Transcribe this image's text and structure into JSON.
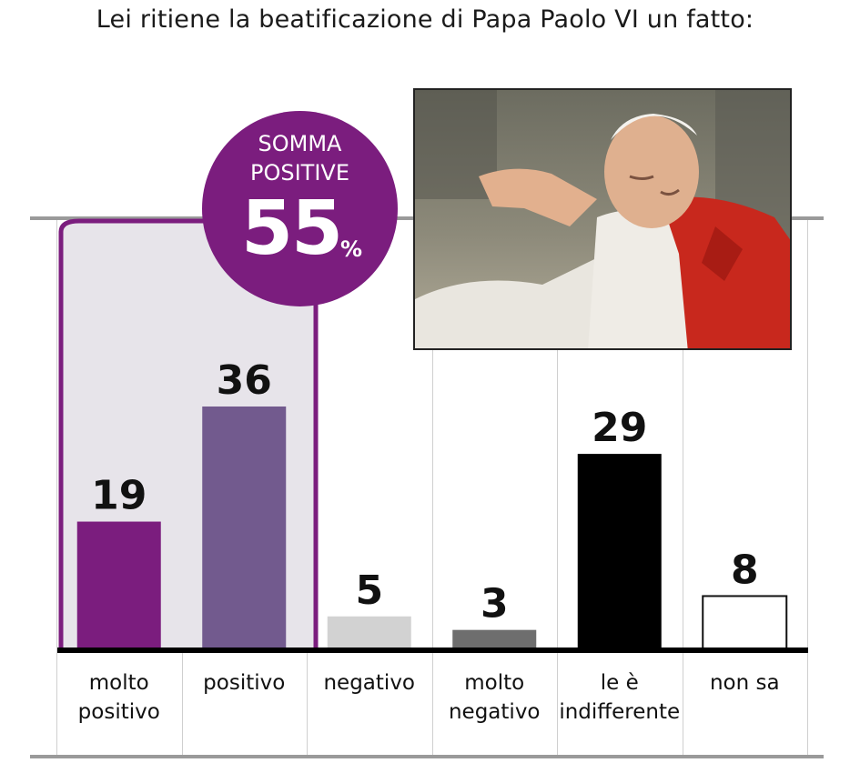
{
  "chart_data": {
    "type": "bar",
    "title": "Lei ritiene la beatificazione di Papa Paolo VI un fatto:",
    "categories": [
      [
        "molto",
        "positivo"
      ],
      [
        "positivo"
      ],
      [
        "negativo"
      ],
      [
        "molto",
        "negativo"
      ],
      [
        "le è",
        "indifferente"
      ],
      [
        "non sa"
      ]
    ],
    "values": [
      19,
      36,
      5,
      3,
      29,
      8
    ],
    "colors": [
      "#7b1d7e",
      "#725a8e",
      "#d2d2d2",
      "#6e6e6e",
      "#000000",
      "#ffffff"
    ],
    "ylim": [
      0,
      60
    ],
    "grid": false,
    "highlight": {
      "line1": "SOMMA",
      "line2": "POSITIVE",
      "value": "55",
      "unit": "%",
      "color": "#7b1d7e"
    }
  }
}
